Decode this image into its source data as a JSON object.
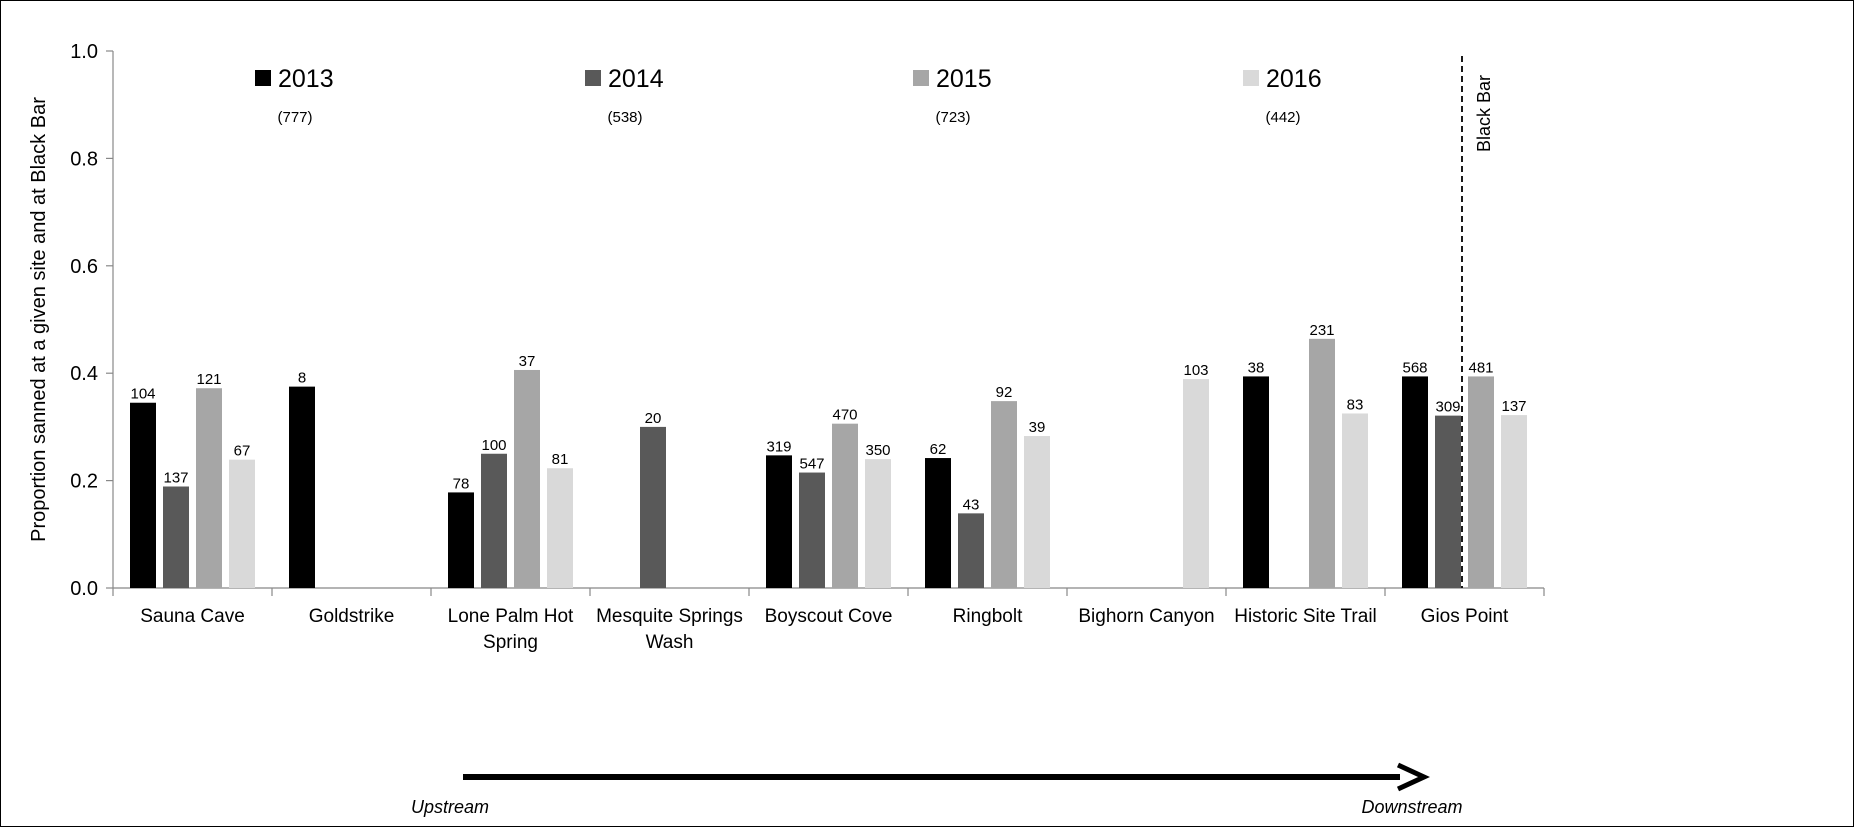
{
  "chart_data": {
    "type": "bar",
    "ylabel": "Proportion sanned at a given site and at Black Bar",
    "ylim": [
      0,
      1.0
    ],
    "yticks": [
      "0.0",
      "0.2",
      "0.4",
      "0.6",
      "0.8",
      "1.0"
    ],
    "ytick_values": [
      0,
      0.2,
      0.4,
      0.6,
      0.8,
      1.0
    ],
    "grid": false,
    "categories": [
      [
        "Sauna Cave"
      ],
      [
        "Goldstrike"
      ],
      [
        "Lone Palm Hot",
        "Spring"
      ],
      [
        "Mesquite Springs",
        "Wash"
      ],
      [
        "Boyscout Cove"
      ],
      [
        "Ringbolt"
      ],
      [
        "Bighorn Canyon"
      ],
      [
        "Historic Site Trail"
      ],
      [
        "Gios Point"
      ]
    ],
    "series": [
      {
        "name": "2013",
        "total": "(777)",
        "color": "#000000",
        "values": [
          0.345,
          0.375,
          0.178,
          null,
          0.247,
          0.242,
          null,
          0.394,
          0.394
        ],
        "labels": [
          "104",
          "8",
          "78",
          null,
          "319",
          "62",
          null,
          "38",
          "568"
        ]
      },
      {
        "name": "2014",
        "total": "(538)",
        "color": "#595959",
        "values": [
          0.189,
          null,
          0.25,
          0.3,
          0.215,
          0.139,
          null,
          null,
          0.321
        ],
        "labels": [
          "137",
          null,
          "100",
          "20",
          "547",
          "43",
          null,
          null,
          "309"
        ]
      },
      {
        "name": "2015",
        "total": "(723)",
        "color": "#a6a6a6",
        "values": [
          0.372,
          null,
          0.406,
          null,
          0.306,
          0.348,
          null,
          0.464,
          0.394
        ],
        "labels": [
          "121",
          null,
          "37",
          null,
          "470",
          "92",
          null,
          "231",
          "481"
        ]
      },
      {
        "name": "2016",
        "total": "(442)",
        "color": "#d9d9d9",
        "values": [
          0.239,
          null,
          0.223,
          null,
          0.24,
          0.283,
          0.389,
          0.325,
          0.322
        ],
        "labels": [
          "67",
          null,
          "81",
          null,
          "350",
          "39",
          "103",
          "83",
          "137"
        ]
      }
    ],
    "legend_position": "top",
    "divider_label": "Black Bar",
    "direction": {
      "start": "Upstream",
      "end": "Downstream"
    }
  }
}
